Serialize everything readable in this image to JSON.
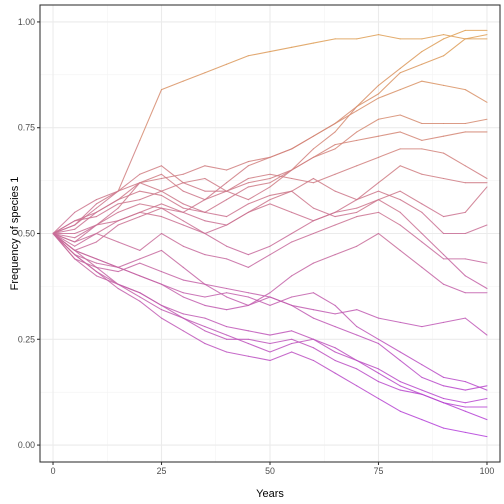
{
  "chart_data": {
    "type": "line",
    "xlabel": "Years",
    "ylabel": "Frequency of species 1",
    "xlim": [
      -3,
      103
    ],
    "ylim": [
      -0.04,
      1.04
    ],
    "x_ticks": [
      0,
      25,
      50,
      75,
      100
    ],
    "x_tick_labels": [
      "0",
      "25",
      "50",
      "75",
      "100"
    ],
    "y_ticks": [
      0.0,
      0.25,
      0.5,
      0.75,
      1.0
    ],
    "y_tick_labels": [
      "0.00",
      "0.25",
      "0.50",
      "0.75",
      "1.00"
    ],
    "x_minor": [
      12.5,
      37.5,
      62.5,
      87.5
    ],
    "y_minor": [
      0.125,
      0.375,
      0.625,
      0.875
    ],
    "grid": true,
    "legend": "none",
    "color_low": "#b23adf",
    "color_high": "#e0a24e",
    "x": [
      0,
      5,
      10,
      15,
      20,
      25,
      30,
      35,
      40,
      45,
      50,
      55,
      60,
      65,
      70,
      75,
      80,
      85,
      90,
      95,
      100
    ],
    "series": [
      {
        "values": [
          0.5,
          0.55,
          0.58,
          0.6,
          0.72,
          0.84,
          0.86,
          0.88,
          0.9,
          0.92,
          0.93,
          0.94,
          0.95,
          0.96,
          0.96,
          0.97,
          0.96,
          0.96,
          0.97,
          0.96,
          0.97
        ]
      },
      {
        "values": [
          0.5,
          0.52,
          0.57,
          0.6,
          0.62,
          0.6,
          0.62,
          0.63,
          0.6,
          0.58,
          0.61,
          0.65,
          0.7,
          0.74,
          0.8,
          0.85,
          0.89,
          0.93,
          0.96,
          0.98,
          0.98
        ]
      },
      {
        "values": [
          0.5,
          0.48,
          0.52,
          0.56,
          0.62,
          0.64,
          0.6,
          0.58,
          0.62,
          0.66,
          0.68,
          0.7,
          0.73,
          0.76,
          0.8,
          0.83,
          0.88,
          0.9,
          0.92,
          0.96,
          0.96
        ]
      },
      {
        "values": [
          0.5,
          0.53,
          0.55,
          0.58,
          0.62,
          0.63,
          0.64,
          0.66,
          0.65,
          0.67,
          0.68,
          0.7,
          0.73,
          0.76,
          0.79,
          0.82,
          0.84,
          0.86,
          0.85,
          0.84,
          0.81
        ]
      },
      {
        "values": [
          0.5,
          0.52,
          0.56,
          0.6,
          0.64,
          0.66,
          0.62,
          0.6,
          0.6,
          0.62,
          0.63,
          0.65,
          0.68,
          0.7,
          0.74,
          0.77,
          0.78,
          0.76,
          0.76,
          0.76,
          0.77
        ]
      },
      {
        "values": [
          0.5,
          0.51,
          0.55,
          0.58,
          0.6,
          0.59,
          0.56,
          0.55,
          0.58,
          0.61,
          0.62,
          0.65,
          0.68,
          0.71,
          0.72,
          0.73,
          0.74,
          0.72,
          0.73,
          0.74,
          0.74
        ]
      },
      {
        "values": [
          0.5,
          0.49,
          0.52,
          0.55,
          0.57,
          0.56,
          0.55,
          0.58,
          0.6,
          0.63,
          0.64,
          0.63,
          0.62,
          0.64,
          0.66,
          0.68,
          0.7,
          0.7,
          0.69,
          0.66,
          0.63
        ]
      },
      {
        "values": [
          0.5,
          0.48,
          0.5,
          0.53,
          0.55,
          0.57,
          0.55,
          0.53,
          0.52,
          0.55,
          0.58,
          0.6,
          0.63,
          0.6,
          0.58,
          0.62,
          0.66,
          0.64,
          0.63,
          0.62,
          0.62
        ]
      },
      {
        "values": [
          0.5,
          0.53,
          0.54,
          0.57,
          0.58,
          0.6,
          0.57,
          0.55,
          0.54,
          0.57,
          0.59,
          0.6,
          0.56,
          0.54,
          0.55,
          0.58,
          0.6,
          0.57,
          0.54,
          0.55,
          0.61
        ]
      },
      {
        "values": [
          0.5,
          0.5,
          0.52,
          0.53,
          0.55,
          0.54,
          0.52,
          0.5,
          0.52,
          0.55,
          0.57,
          0.55,
          0.53,
          0.55,
          0.58,
          0.6,
          0.58,
          0.55,
          0.5,
          0.5,
          0.52
        ]
      },
      {
        "values": [
          0.5,
          0.46,
          0.48,
          0.52,
          0.54,
          0.56,
          0.53,
          0.5,
          0.47,
          0.45,
          0.47,
          0.5,
          0.53,
          0.55,
          0.56,
          0.58,
          0.55,
          0.5,
          0.45,
          0.4,
          0.37
        ]
      },
      {
        "values": [
          0.5,
          0.47,
          0.5,
          0.48,
          0.46,
          0.5,
          0.47,
          0.45,
          0.44,
          0.42,
          0.45,
          0.48,
          0.5,
          0.52,
          0.54,
          0.55,
          0.52,
          0.48,
          0.44,
          0.44,
          0.43
        ]
      },
      {
        "values": [
          0.5,
          0.46,
          0.44,
          0.42,
          0.44,
          0.46,
          0.42,
          0.38,
          0.35,
          0.33,
          0.36,
          0.4,
          0.43,
          0.45,
          0.47,
          0.5,
          0.46,
          0.42,
          0.38,
          0.36,
          0.36
        ]
      },
      {
        "values": [
          0.5,
          0.44,
          0.42,
          0.41,
          0.43,
          0.41,
          0.39,
          0.38,
          0.37,
          0.36,
          0.35,
          0.33,
          0.32,
          0.31,
          0.32,
          0.3,
          0.29,
          0.28,
          0.29,
          0.3,
          0.26
        ]
      },
      {
        "values": [
          0.5,
          0.45,
          0.43,
          0.42,
          0.4,
          0.38,
          0.36,
          0.35,
          0.36,
          0.35,
          0.33,
          0.35,
          0.36,
          0.33,
          0.28,
          0.25,
          0.22,
          0.19,
          0.16,
          0.15,
          0.13
        ]
      },
      {
        "values": [
          0.5,
          0.46,
          0.44,
          0.42,
          0.4,
          0.38,
          0.35,
          0.33,
          0.32,
          0.33,
          0.35,
          0.33,
          0.3,
          0.28,
          0.26,
          0.24,
          0.2,
          0.16,
          0.14,
          0.13,
          0.14
        ]
      },
      {
        "values": [
          0.5,
          0.45,
          0.41,
          0.38,
          0.36,
          0.33,
          0.31,
          0.3,
          0.28,
          0.27,
          0.26,
          0.27,
          0.25,
          0.22,
          0.2,
          0.18,
          0.15,
          0.13,
          0.11,
          0.1,
          0.11
        ]
      },
      {
        "values": [
          0.5,
          0.44,
          0.4,
          0.38,
          0.36,
          0.33,
          0.3,
          0.27,
          0.25,
          0.25,
          0.24,
          0.25,
          0.23,
          0.2,
          0.18,
          0.15,
          0.13,
          0.12,
          0.1,
          0.09,
          0.09
        ]
      },
      {
        "values": [
          0.5,
          0.46,
          0.42,
          0.38,
          0.35,
          0.32,
          0.3,
          0.28,
          0.26,
          0.24,
          0.22,
          0.24,
          0.25,
          0.23,
          0.2,
          0.17,
          0.14,
          0.12,
          0.1,
          0.08,
          0.06
        ]
      },
      {
        "values": [
          0.5,
          0.45,
          0.41,
          0.37,
          0.34,
          0.3,
          0.27,
          0.24,
          0.22,
          0.21,
          0.2,
          0.22,
          0.2,
          0.17,
          0.14,
          0.11,
          0.08,
          0.06,
          0.04,
          0.03,
          0.02
        ]
      }
    ]
  }
}
